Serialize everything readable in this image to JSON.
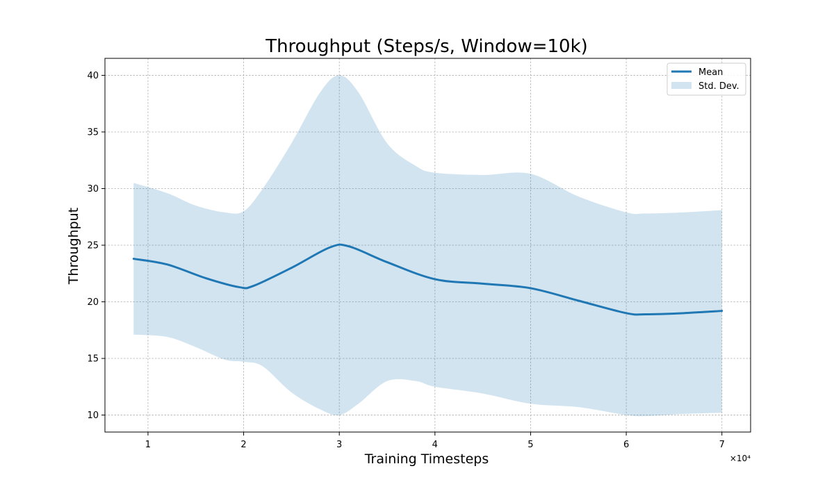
{
  "chart_data": {
    "type": "line",
    "title": "Throughput (Steps/s, Window=10k)",
    "xlabel": "Training Timesteps",
    "ylabel": "Throughput",
    "x_offset_label": "×10⁴",
    "xlim": [
      5500,
      73000
    ],
    "ylim": [
      8.5,
      41.5
    ],
    "xticks": [
      10000,
      20000,
      30000,
      40000,
      50000,
      60000,
      70000
    ],
    "xtick_labels": [
      "1",
      "2",
      "3",
      "4",
      "5",
      "6",
      "7"
    ],
    "yticks": [
      10,
      15,
      20,
      25,
      30,
      35,
      40
    ],
    "ytick_labels": [
      "10",
      "15",
      "20",
      "25",
      "30",
      "35",
      "40"
    ],
    "grid": true,
    "legend_position": "top-right",
    "series": [
      {
        "name": "Mean",
        "kind": "line",
        "color": "#1f77b4",
        "x": [
          8500,
          12000,
          16000,
          19500,
          21000,
          25000,
          29000,
          31000,
          35000,
          40000,
          45000,
          50000,
          55000,
          60000,
          62000,
          66000,
          70000
        ],
        "y": [
          23.8,
          23.3,
          22.1,
          21.3,
          21.4,
          23.0,
          24.8,
          24.9,
          23.5,
          22.0,
          21.6,
          21.2,
          20.1,
          19.0,
          18.9,
          19.0,
          19.2
        ]
      },
      {
        "name": "Std. Dev.",
        "kind": "band",
        "color": "#1f77b4",
        "opacity": 0.2,
        "x": [
          8500,
          12000,
          15000,
          18000,
          20000,
          22000,
          25000,
          28000,
          30000,
          32000,
          35000,
          38000,
          40000,
          45000,
          50000,
          55000,
          60000,
          62000,
          66000,
          70000
        ],
        "upper": [
          30.5,
          29.6,
          28.5,
          27.9,
          28.0,
          30.0,
          34.0,
          38.5,
          40.0,
          38.5,
          34.0,
          32.0,
          31.4,
          31.2,
          31.3,
          29.3,
          27.9,
          27.8,
          27.9,
          28.1
        ],
        "lower": [
          17.1,
          16.9,
          16.0,
          14.9,
          14.7,
          14.3,
          12.0,
          10.5,
          10.0,
          11.0,
          13.0,
          13.0,
          12.5,
          11.9,
          11.0,
          10.7,
          10.0,
          9.9,
          10.1,
          10.2
        ]
      }
    ]
  }
}
